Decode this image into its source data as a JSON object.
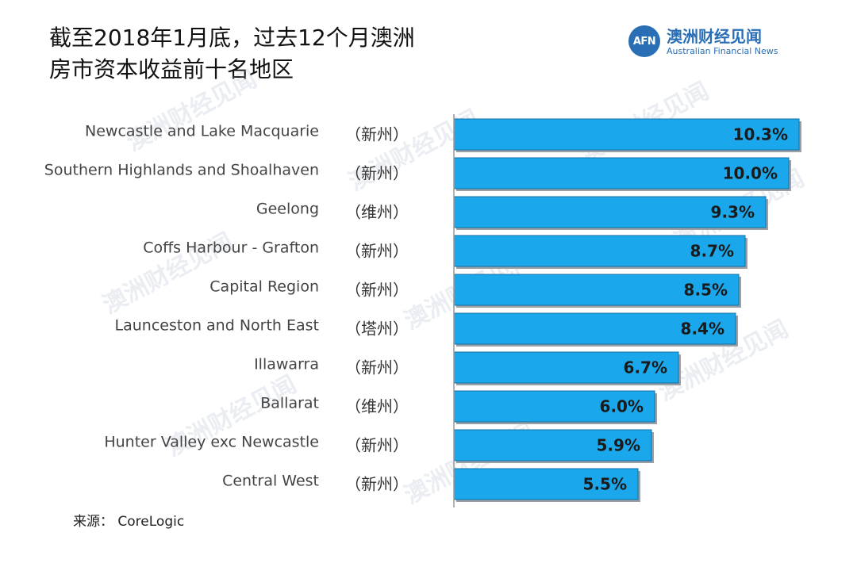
{
  "title": {
    "line1": "截至2018年1月底，过去12个月澳洲",
    "line2": "房市资本收益前十名地区"
  },
  "logo": {
    "mark": "AFN",
    "name_cn": "澳洲财经见闻",
    "name_en": "Australian Financial News"
  },
  "source": "来源：  CoreLogic",
  "colors": {
    "bar_fill": "#1ba7eb",
    "bar_edge": "#0f6fa6",
    "bar_shadow": "#9aa0a6",
    "axis": "#9a9a9a",
    "brand": "#2a6fb5"
  },
  "chart_data": {
    "type": "bar",
    "orientation": "horizontal",
    "categories": [
      "Newcastle and Lake Macquarie",
      "Southern Highlands and Shoalhaven",
      "Geelong",
      "Coffs Harbour - Grafton",
      "Capital Region",
      "Launceston and North East",
      "Illawarra",
      "Ballarat",
      "Hunter Valley exc Newcastle",
      "Central West"
    ],
    "states": [
      "（新州）",
      "（新州）",
      "（维州）",
      "（新州）",
      "（新州）",
      "（塔州）",
      "（新州）",
      "（维州）",
      "（新州）",
      "（新州）"
    ],
    "values": [
      10.3,
      10.0,
      9.3,
      8.7,
      8.5,
      8.4,
      6.7,
      6.0,
      5.9,
      5.5
    ],
    "data_labels": [
      "10.3%",
      "10.0%",
      "9.3%",
      "8.7%",
      "8.5%",
      "8.4%",
      "6.7%",
      "6.0%",
      "5.9%",
      "5.5%"
    ],
    "xlim": [
      0,
      10.3
    ],
    "grid": false,
    "legend": "none"
  }
}
